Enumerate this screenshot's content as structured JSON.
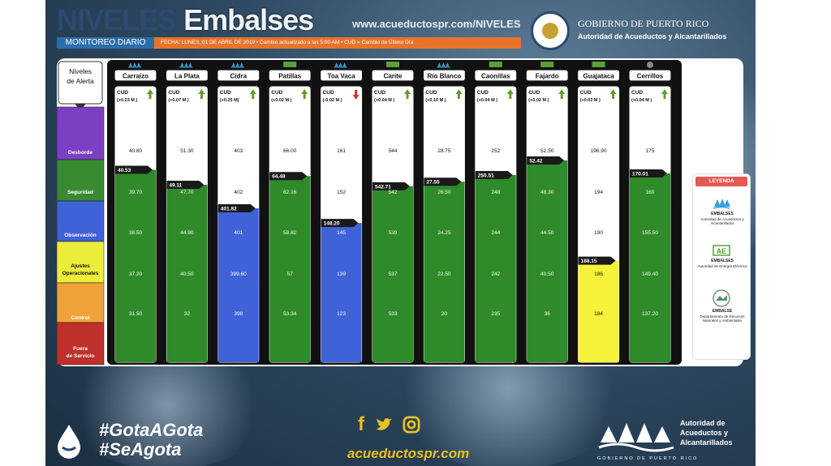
{
  "header": {
    "title_a": "NIVELES",
    "title_b": "Embalses",
    "url": "www.acueductospr.com/NIVELES",
    "monitor": "MONITOREO DIARIO",
    "date_line": "FECHA: LUNES, 01 DE ABRIL DE 2019 • Cambio actualizado a las 5:00 AM • CUD = Cambio de Último Día",
    "gov_line1": "GOBIERNO DE PUERTO RICO",
    "gov_line2": "Autoridad de Acueductos y Alcantarillados"
  },
  "levels_header": "Niveles de Alerta",
  "alert_levels": [
    {
      "name": "Desborde",
      "color": "#7b3fc4"
    },
    {
      "name": "Seguridad",
      "color": "#3a8a32"
    },
    {
      "name": "Observación",
      "color": "#3f62d8"
    },
    {
      "name": "Ajustes Operacionales",
      "color": "#ecec3a"
    },
    {
      "name": "Control",
      "color": "#f0a23a"
    },
    {
      "name": "Fuera de Servicio",
      "color": "#c0302a"
    }
  ],
  "colors": {
    "green": "#2f8a2a",
    "blue": "#3f62d8",
    "yellow": "#f5f23a",
    "up": "#6a9a2a",
    "down": "#d8322a"
  },
  "legend": {
    "title": "LEYENDA",
    "items": [
      {
        "icon": "aaa-icon",
        "title": "EMBALSES",
        "text": "Autoridad de Acueductos y Alcantarillados"
      },
      {
        "icon": "aee-icon",
        "title": "EMBALSES",
        "text": "Autoridad de Energía Eléctrica"
      },
      {
        "icon": "drna-icon",
        "title": "EMBALSE",
        "text": "Departamento de Recursos Naturales y Ambientales"
      }
    ]
  },
  "chart_data": {
    "type": "table",
    "cud_label": "CUD",
    "reservoirs": [
      {
        "name": "Carraízo",
        "owner": "aaa-icon",
        "cud": "(+0.23 M )",
        "trend": "up",
        "thresholds": [
          "40.80",
          "39.70",
          "38.50",
          "37.20",
          "31.50"
        ],
        "current": "40.53",
        "level": 40.53,
        "status": "green"
      },
      {
        "name": "La Plata",
        "owner": "aaa-icon",
        "cud": "(+0.07 M )",
        "trend": "up",
        "thresholds": [
          "51.30",
          "47.70",
          "44.90",
          "40.50",
          "32"
        ],
        "current": "49.11",
        "level": 49.11,
        "status": "green"
      },
      {
        "name": "Cidra",
        "owner": "aaa-icon",
        "cud": "(+0.25 M)",
        "trend": "up",
        "thresholds": [
          "403",
          "402",
          "401",
          "399.60",
          "398"
        ],
        "current": "401.82",
        "level": 401.82,
        "status": "blue"
      },
      {
        "name": "Patillas",
        "owner": "aee-icon",
        "cud": "(+0.02 M )",
        "trend": "up",
        "thresholds": [
          "66.00",
          "62.16",
          "58.82",
          "57",
          "53.34"
        ],
        "current": "64.48",
        "level": 64.48,
        "status": "green"
      },
      {
        "name": "Toa Vaca",
        "owner": "aaa-icon",
        "cud": "(-0.02 M )",
        "trend": "down",
        "thresholds": [
          "161",
          "152",
          "145",
          "139",
          "123"
        ],
        "current": "148.20",
        "level": 148.2,
        "status": "blue"
      },
      {
        "name": "Carite",
        "owner": "aee-icon",
        "cud": "(+0.04 M )",
        "trend": "up",
        "thresholds": [
          "544",
          "542",
          "539",
          "537",
          "533"
        ],
        "current": "542.71",
        "level": 542.71,
        "status": "green"
      },
      {
        "name": "Río Blanco",
        "owner": "aaa-icon",
        "cud": "(+0.10 M )",
        "trend": "up",
        "thresholds": [
          "28.75",
          "26.50",
          "24.25",
          "22.50",
          "20"
        ],
        "current": "27.55",
        "level": 27.55,
        "status": "green"
      },
      {
        "name": "Caonillas",
        "owner": "aee-icon",
        "cud": "(+0.04 M )",
        "trend": "up",
        "thresholds": [
          "252",
          "248",
          "244",
          "242",
          "235"
        ],
        "current": "250.51",
        "level": 250.51,
        "status": "green"
      },
      {
        "name": "Fajardo",
        "owner": "aee-icon",
        "cud": "(+0.02 M )",
        "trend": "up",
        "thresholds": [
          "52.50",
          "48.30",
          "44.50",
          "40.50",
          "36"
        ],
        "current": "52.42",
        "level": 52.42,
        "status": "green"
      },
      {
        "name": "Guajataca",
        "owner": "aee-icon",
        "cud": "(+0.03 M )",
        "trend": "up",
        "thresholds": [
          "196.90",
          "194",
          "190",
          "186",
          "184"
        ],
        "current": "188.15",
        "level": 188.15,
        "status": "yellow"
      },
      {
        "name": "Cerrillos",
        "owner": "drna-icon",
        "cud": "(+0.04 M )",
        "trend": "up",
        "thresholds": [
          "175",
          "160",
          "155.50",
          "149.40",
          "137.20"
        ],
        "current": "170.01",
        "level": 170.01,
        "status": "green"
      }
    ]
  },
  "footer": {
    "hashtag1": "#GotaAGota",
    "hashtag2": "#SeAgota",
    "url": "acueductospr.com",
    "org_line1": "Autoridad de",
    "org_line2": "Acueductos y",
    "org_line3": "Alcantarillados",
    "gov": "GOBIERNO DE PUERTO RICO"
  }
}
